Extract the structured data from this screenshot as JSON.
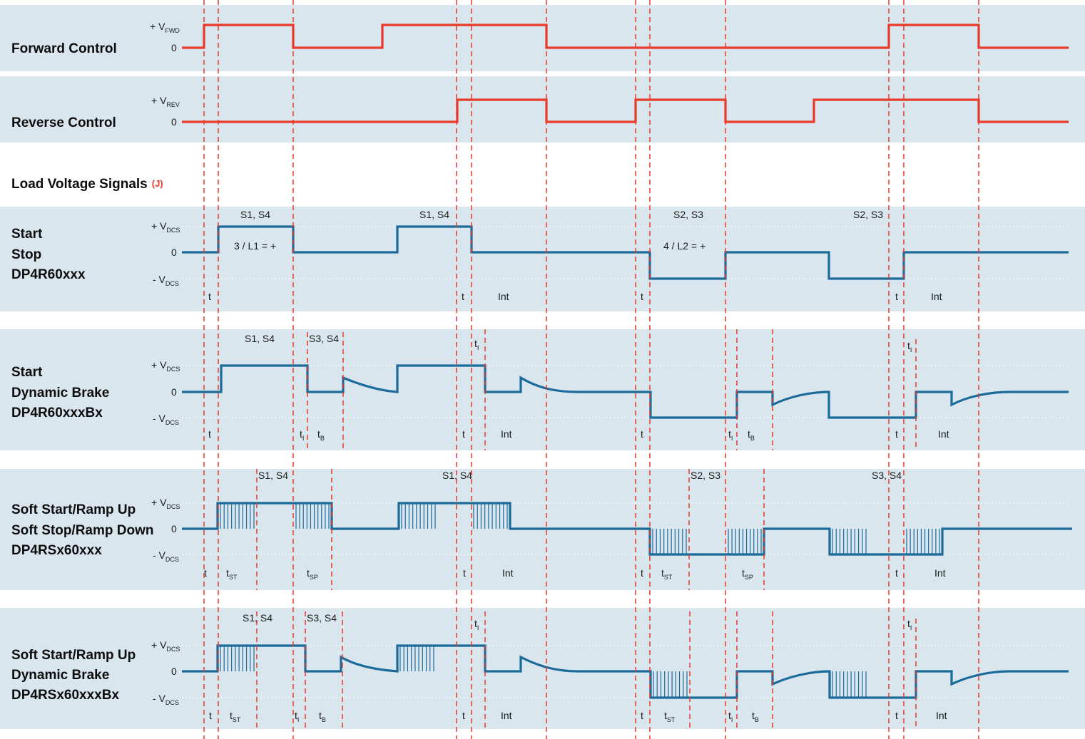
{
  "rows": {
    "forward": {
      "title": "Forward Control",
      "level_high": "+ V",
      "level_high_sub": "FWD",
      "level_zero": "0"
    },
    "reverse": {
      "title": "Reverse Control",
      "level_high": "+ V",
      "level_high_sub": "REV",
      "level_zero": "0"
    },
    "section": {
      "title": "Load Voltage Signals",
      "note": "(J)"
    },
    "start_stop": {
      "title_lines": [
        "Start",
        "Stop",
        "DP4R60xxx"
      ]
    },
    "dyn_brake": {
      "title_lines": [
        "Start",
        "Dynamic Brake",
        "DP4R60xxxBx"
      ]
    },
    "soft": {
      "title_lines": [
        "Soft Start/Ramp Up",
        "Soft Stop/Ramp Down",
        "DP4RSx60xxx"
      ]
    },
    "soft_dyn": {
      "title_lines": [
        "Soft Start/Ramp Up",
        "Dynamic Brake",
        "DP4RSx60xxxBx"
      ]
    }
  },
  "levels": {
    "pos": "+ V",
    "zero": "0",
    "neg": "- V",
    "sub": "DCS"
  },
  "labels": {
    "s14": "S1, S4",
    "s23": "S2, S3",
    "s34": "S3, S4",
    "l1": "3 / L1 = +",
    "l2": "4 / L2 = +",
    "t": "t",
    "int": "Int",
    "sub_I": "I",
    "sub_B": "B",
    "sub_ST": "ST",
    "sub_SP": "SP"
  }
}
